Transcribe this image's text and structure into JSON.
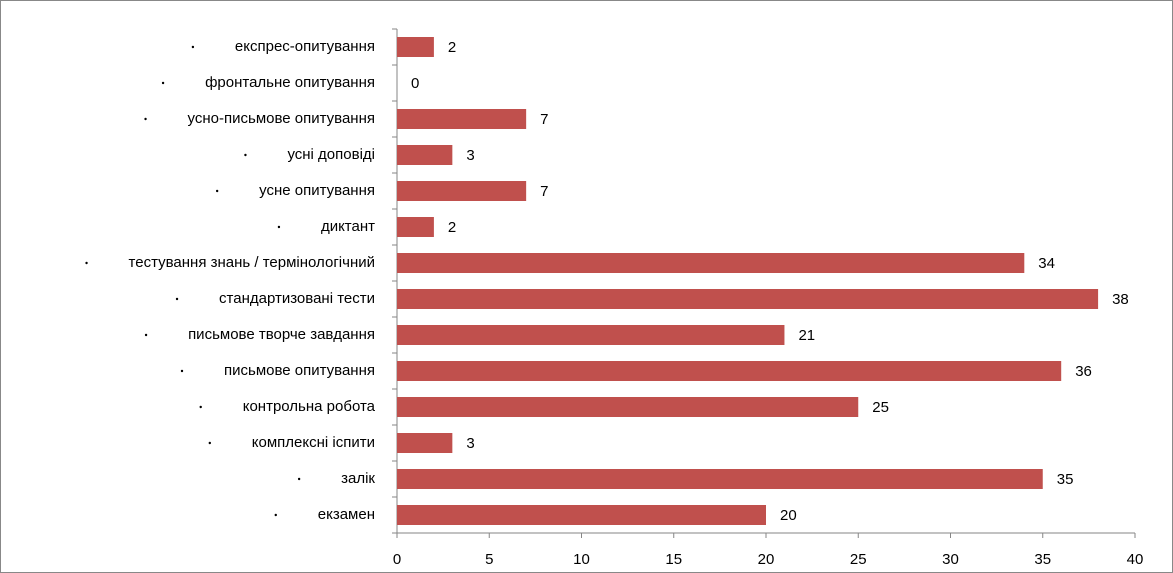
{
  "chart_data": {
    "type": "bar",
    "orientation": "horizontal",
    "categories": [
      "експрес-опитування",
      "фронтальне опитування",
      "усно-письмове опитування",
      "усні доповіді",
      "усне опитування",
      "диктант",
      "тестування знань / термінологічний",
      "стандартизовані тести",
      "письмове творче завдання",
      "письмове опитування",
      "контрольна робота",
      "комплексні іспити",
      "залік",
      "екзамен"
    ],
    "values": [
      2,
      0,
      7,
      3,
      7,
      2,
      34,
      38,
      21,
      36,
      25,
      3,
      35,
      20
    ],
    "color": "#c0504d",
    "xlim": [
      0,
      40
    ],
    "xticks": [
      0,
      5,
      10,
      15,
      20,
      25,
      30,
      35,
      40
    ],
    "grid": false
  }
}
